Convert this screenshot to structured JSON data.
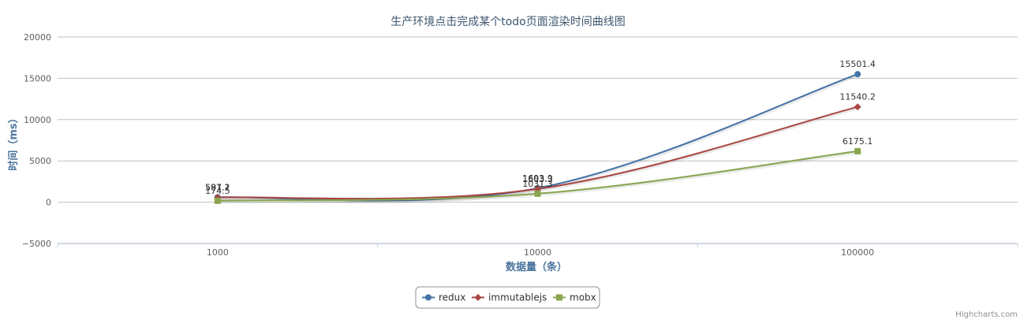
{
  "chart_data": {
    "type": "line",
    "title": "生产环境点击完成某个todo页面渲染时间曲线图",
    "xlabel": "数据量（条）",
    "ylabel": "时间（ms）",
    "categories": [
      "1000",
      "10000",
      "100000"
    ],
    "ylim": [
      -5000,
      20000
    ],
    "yticks": [
      -5000,
      0,
      5000,
      10000,
      15000,
      20000
    ],
    "grid": true,
    "legend_position": "bottom-center",
    "series": [
      {
        "name": "redux",
        "values": [
          597.2,
          1693.9,
          15501.4
        ],
        "color": "#4572A7",
        "marker": "circle"
      },
      {
        "name": "immutablejs",
        "values": [
          581.1,
          1603.3,
          11540.2
        ],
        "color": "#AA4643",
        "marker": "diamond"
      },
      {
        "name": "mobx",
        "values": [
          174.5,
          1031.3,
          6175.1
        ],
        "color": "#89A54E",
        "marker": "square"
      }
    ],
    "credit": "Highcharts.com"
  }
}
